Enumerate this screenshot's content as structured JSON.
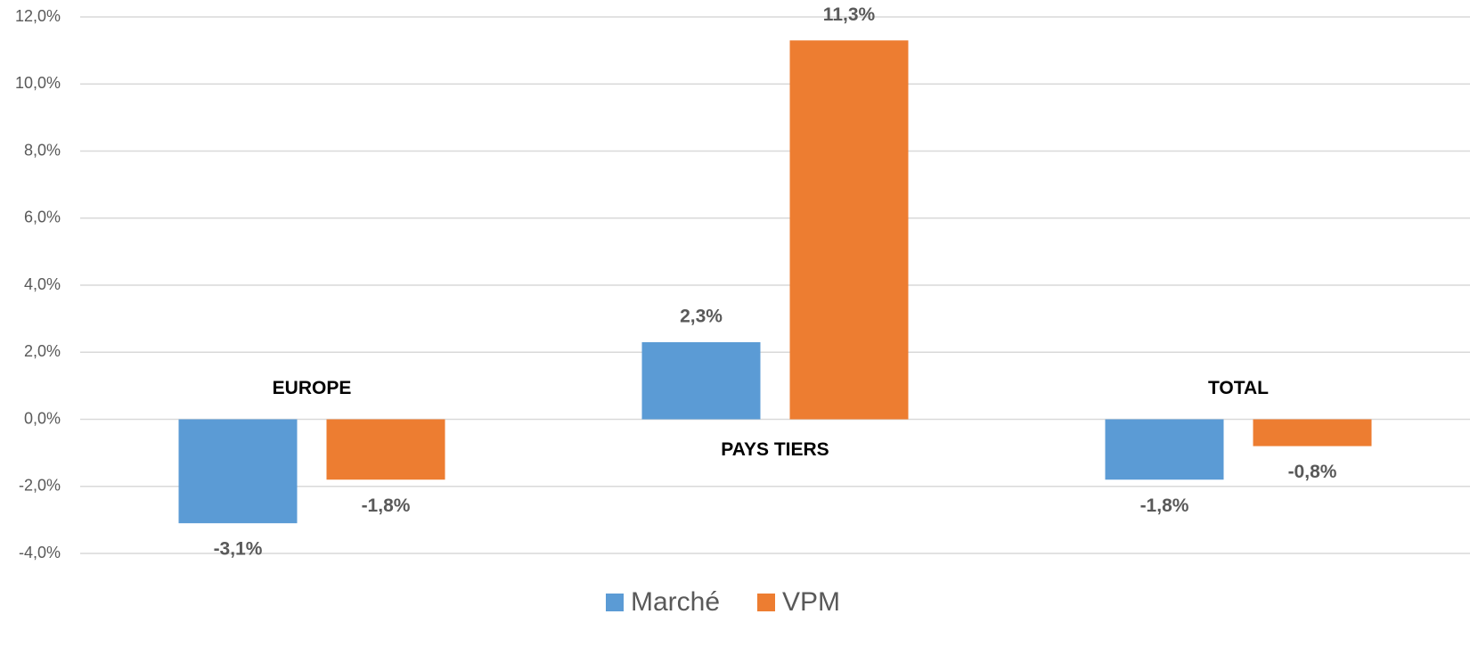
{
  "chart_data": {
    "type": "bar",
    "categories": [
      "EUROPE",
      "PAYS TIERS",
      "TOTAL"
    ],
    "series": [
      {
        "name": "Marché",
        "color": "#5b9bd5",
        "values": [
          -3.1,
          2.3,
          -1.8
        ],
        "value_labels": [
          "-3,1%",
          "2,3%",
          "-1,8%"
        ]
      },
      {
        "name": "VPM",
        "color": "#ed7d31",
        "values": [
          -1.8,
          11.3,
          -0.8
        ],
        "value_labels": [
          "-1,8%",
          "11,3%",
          "-0,8%"
        ]
      }
    ],
    "ylim": [
      -4,
      12
    ],
    "yticks": [
      {
        "value": -4,
        "label": "-4,0%"
      },
      {
        "value": -2,
        "label": "-2,0%"
      },
      {
        "value": 0,
        "label": "0,0%"
      },
      {
        "value": 2,
        "label": "2,0%"
      },
      {
        "value": 4,
        "label": "4,0%"
      },
      {
        "value": 6,
        "label": "6,0%"
      },
      {
        "value": 8,
        "label": "8,0%"
      },
      {
        "value": 10,
        "label": "10,0%"
      },
      {
        "value": 12,
        "label": "12,0%"
      }
    ],
    "grid": true,
    "legend": "bottom"
  }
}
